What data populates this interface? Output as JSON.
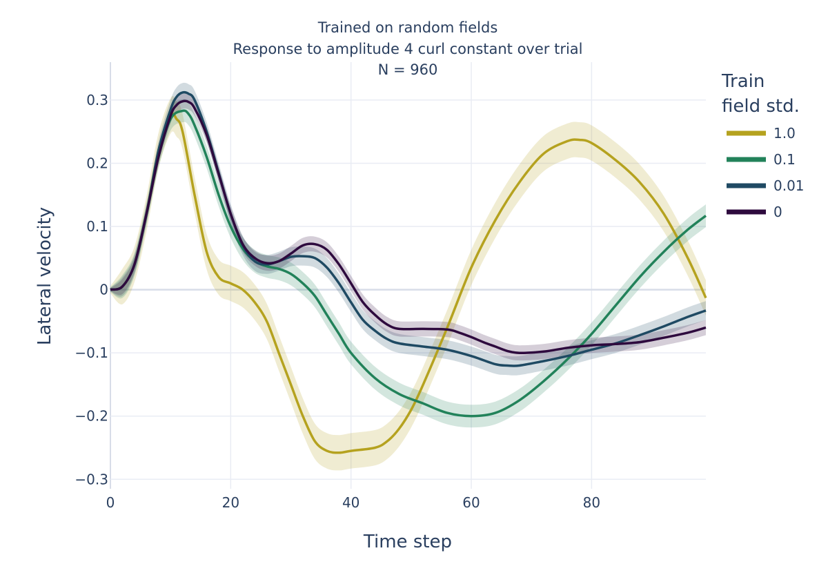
{
  "chart_data": {
    "type": "line",
    "title_lines": [
      "Trained on random fields",
      "Response to amplitude 4 curl constant over trial",
      "N = 960"
    ],
    "xlabel": "Time step",
    "ylabel": "Lateral velocity",
    "xlim": [
      0,
      99
    ],
    "ylim": [
      -0.315,
      0.36
    ],
    "x_ticks": [
      0,
      20,
      40,
      60,
      80
    ],
    "x_tick_labels": [
      "0",
      "20",
      "40",
      "60",
      "80"
    ],
    "y_ticks": [
      0.3,
      0.2,
      0.1,
      0,
      -0.1,
      -0.2,
      -0.3
    ],
    "y_tick_labels": [
      "0.3",
      "0.2",
      "0.1",
      "0",
      "−0.1",
      "−0.2",
      "−0.3"
    ],
    "grid": true,
    "legend": {
      "title_lines": [
        "Train",
        "field std."
      ],
      "placement": "right"
    },
    "series": [
      {
        "name": "1.0",
        "color": "#b5a21f",
        "band": 0.028,
        "x": [
          0,
          2,
          4,
          6,
          8,
          10,
          11,
          12,
          14,
          16,
          18,
          20,
          22,
          24,
          26,
          28,
          30,
          32,
          34,
          36,
          38,
          40,
          44,
          46,
          48,
          50,
          52,
          56,
          60,
          64,
          68,
          72,
          76,
          78,
          80,
          84,
          88,
          92,
          96,
          99
        ],
        "y": [
          0,
          0.005,
          0.04,
          0.12,
          0.22,
          0.275,
          0.27,
          0.25,
          0.15,
          0.06,
          0.02,
          0.01,
          0.0,
          -0.02,
          -0.05,
          -0.1,
          -0.15,
          -0.2,
          -0.24,
          -0.255,
          -0.258,
          -0.255,
          -0.25,
          -0.24,
          -0.22,
          -0.19,
          -0.15,
          -0.06,
          0.035,
          0.11,
          0.17,
          0.215,
          0.235,
          0.237,
          0.232,
          0.205,
          0.17,
          0.12,
          0.05,
          -0.013
        ]
      },
      {
        "name": "0.1",
        "color": "#22825a",
        "band": 0.018,
        "x": [
          0,
          2,
          4,
          6,
          8,
          10,
          12,
          13,
          14,
          16,
          18,
          20,
          22,
          24,
          26,
          28,
          30,
          32,
          34,
          36,
          38,
          40,
          44,
          48,
          52,
          56,
          60,
          64,
          68,
          72,
          76,
          80,
          84,
          88,
          92,
          96,
          99
        ],
        "y": [
          0,
          0.005,
          0.04,
          0.12,
          0.21,
          0.27,
          0.283,
          0.278,
          0.26,
          0.21,
          0.15,
          0.1,
          0.065,
          0.045,
          0.037,
          0.033,
          0.025,
          0.01,
          -0.01,
          -0.04,
          -0.07,
          -0.1,
          -0.14,
          -0.165,
          -0.18,
          -0.195,
          -0.2,
          -0.195,
          -0.175,
          -0.145,
          -0.11,
          -0.07,
          -0.025,
          0.02,
          0.06,
          0.095,
          0.117
        ]
      },
      {
        "name": "0.01",
        "color": "#1f4a63",
        "band": 0.015,
        "x": [
          0,
          2,
          4,
          6,
          8,
          10,
          11,
          12,
          13,
          14,
          16,
          18,
          20,
          22,
          24,
          26,
          28,
          30,
          32,
          34,
          36,
          38,
          40,
          42,
          44,
          46,
          48,
          52,
          56,
          60,
          64,
          66,
          68,
          72,
          76,
          80,
          84,
          88,
          92,
          96,
          99
        ],
        "y": [
          0,
          0.005,
          0.04,
          0.12,
          0.22,
          0.285,
          0.305,
          0.312,
          0.31,
          0.3,
          0.25,
          0.185,
          0.12,
          0.07,
          0.045,
          0.04,
          0.045,
          0.052,
          0.053,
          0.05,
          0.035,
          0.01,
          -0.02,
          -0.048,
          -0.065,
          -0.078,
          -0.085,
          -0.09,
          -0.095,
          -0.105,
          -0.118,
          -0.12,
          -0.12,
          -0.113,
          -0.105,
          -0.095,
          -0.085,
          -0.072,
          -0.058,
          -0.043,
          -0.033
        ]
      },
      {
        "name": "0",
        "color": "#2e0a3e",
        "band": 0.012,
        "x": [
          0,
          2,
          4,
          6,
          8,
          10,
          11,
          12,
          13,
          14,
          16,
          18,
          20,
          22,
          24,
          26,
          28,
          30,
          32,
          34,
          36,
          38,
          40,
          42,
          44,
          46,
          48,
          52,
          56,
          58,
          60,
          62,
          64,
          66,
          68,
          72,
          76,
          80,
          84,
          88,
          92,
          96,
          99
        ],
        "y": [
          0,
          0.005,
          0.04,
          0.12,
          0.21,
          0.275,
          0.292,
          0.298,
          0.297,
          0.287,
          0.245,
          0.183,
          0.12,
          0.072,
          0.05,
          0.042,
          0.045,
          0.057,
          0.07,
          0.072,
          0.063,
          0.04,
          0.01,
          -0.02,
          -0.04,
          -0.055,
          -0.062,
          -0.062,
          -0.063,
          -0.068,
          -0.075,
          -0.083,
          -0.09,
          -0.097,
          -0.1,
          -0.098,
          -0.092,
          -0.088,
          -0.086,
          -0.083,
          -0.076,
          -0.068,
          -0.06
        ]
      }
    ]
  }
}
